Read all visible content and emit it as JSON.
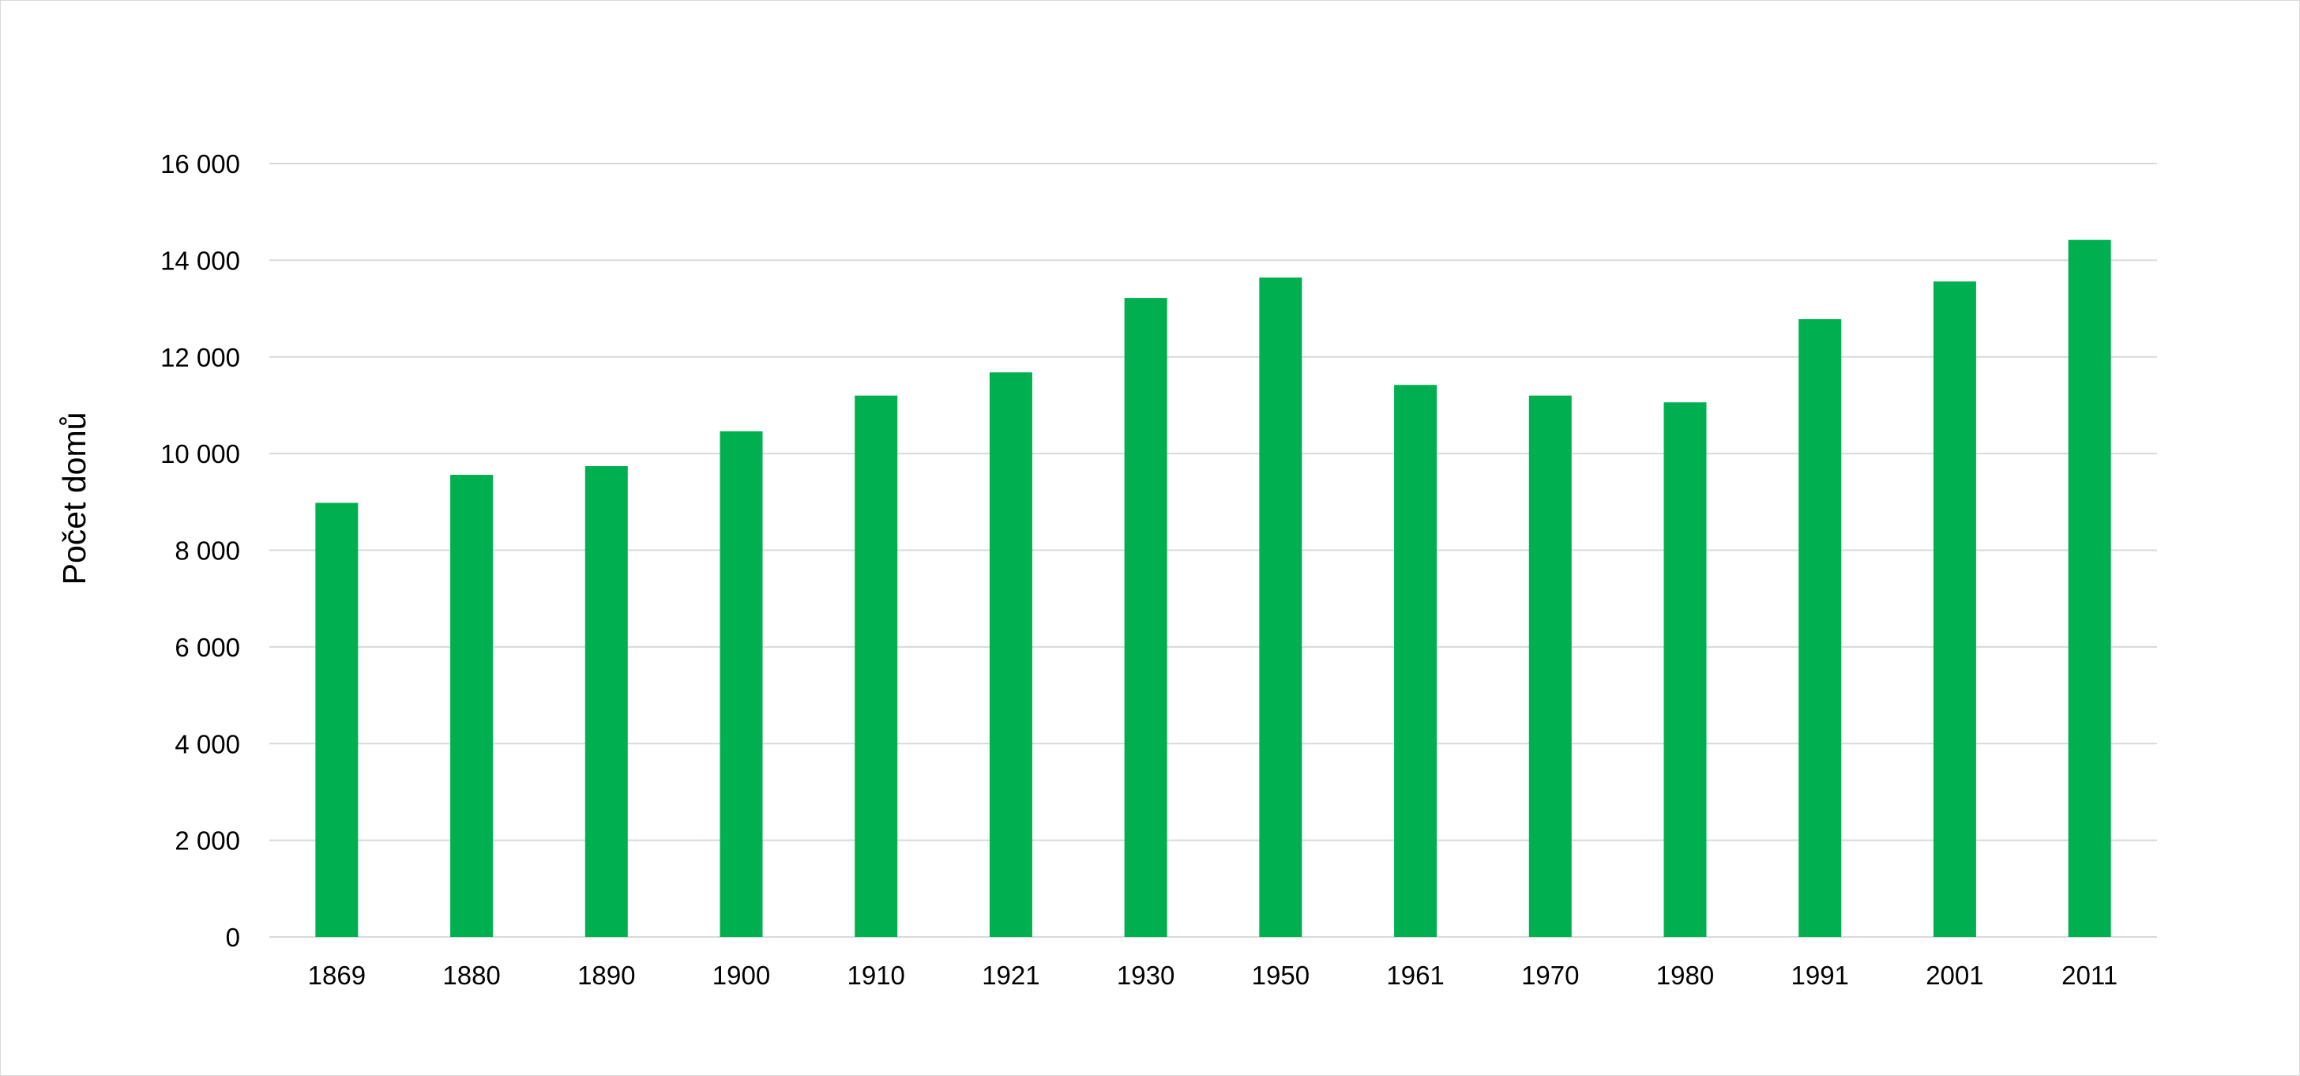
{
  "chart_data": {
    "type": "bar",
    "title": "",
    "xlabel": "",
    "ylabel": "Počet domů",
    "categories": [
      "1869",
      "1880",
      "1890",
      "1900",
      "1910",
      "1921",
      "1930",
      "1950",
      "1961",
      "1970",
      "1980",
      "1991",
      "2001",
      "2011"
    ],
    "series": [
      {
        "values": [
          8980,
          9560,
          9740,
          10460,
          11200,
          11680,
          13220,
          13640,
          11420,
          11200,
          11060,
          12780,
          13560,
          14420
        ]
      }
    ],
    "ylim": [
      0,
      16000
    ],
    "yticks": [
      0,
      2000,
      4000,
      6000,
      8000,
      10000,
      12000,
      14000,
      16000
    ],
    "ytick_labels": [
      "0",
      "2 000",
      "4 000",
      "6 000",
      "8 000",
      "10 000",
      "12 000",
      "14 000",
      "16 000"
    ],
    "grid": true,
    "legend": "none",
    "colors": {
      "bar": "#00B050",
      "grid": "#d9d9d9",
      "frame": "#d9d9d9"
    }
  }
}
